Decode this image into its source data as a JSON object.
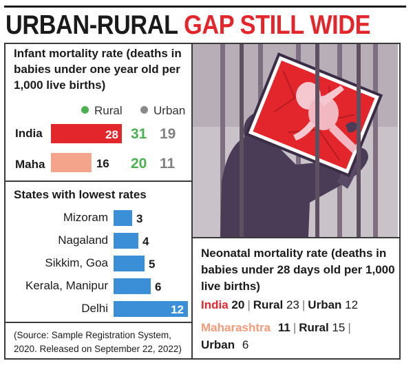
{
  "header": {
    "title_part1": "URBAN-RURAL",
    "title_part2": "GAP STILL WIDE"
  },
  "infant_box": {
    "title": "Infant mortality rate (deaths in babies under one year old per 1,000 live births)",
    "legend_rural": "Rural",
    "legend_urban": "Urban",
    "rows": [
      {
        "label": "India",
        "value": "28",
        "rural": "31",
        "urban": "19"
      },
      {
        "label": "Maha",
        "value": "16",
        "rural": "20",
        "urban": "11"
      }
    ]
  },
  "states_box": {
    "title": "States with lowest rates"
  },
  "source_note": "(Source: Sample Registration System, 2020. Released on September 22, 2022)",
  "neonatal_box": {
    "title": "Neonatal mortality rate (deaths in babies under 28 days old per 1,000 live births)",
    "india_label": "India",
    "india_value": "20",
    "india_rural_label": "Rural",
    "india_rural_value": "23",
    "india_urban_label": "Urban",
    "india_urban_value": "12",
    "maha_label": "Maharashtra",
    "maha_value": "11",
    "maha_rural_label": "Rural",
    "maha_rural_value": "15",
    "maha_urban_label": "Urban",
    "maha_urban_value": "6",
    "separator": "|"
  },
  "colors": {
    "accent_red": "#e3262c",
    "salmon": "#f4a48a",
    "rural_green": "#4caf50",
    "urban_grey": "#808080",
    "bar_blue": "#3a8fd6"
  },
  "chart_data": [
    {
      "type": "bar",
      "orientation": "horizontal",
      "categories": [
        "India",
        "Maha"
      ],
      "values": [
        28,
        16
      ],
      "series_extra": {
        "Rural": [
          31,
          20
        ],
        "Urban": [
          19,
          11
        ]
      },
      "title": "Infant mortality rate (deaths in babies under one year old per 1,000 live births)"
    },
    {
      "type": "bar",
      "orientation": "horizontal",
      "categories": [
        "Mizoram",
        "Nagaland",
        "Sikkim, Goa",
        "Kerala, Manipur",
        "Delhi"
      ],
      "values": [
        3,
        4,
        5,
        6,
        12
      ],
      "title": "States with lowest rates"
    }
  ]
}
